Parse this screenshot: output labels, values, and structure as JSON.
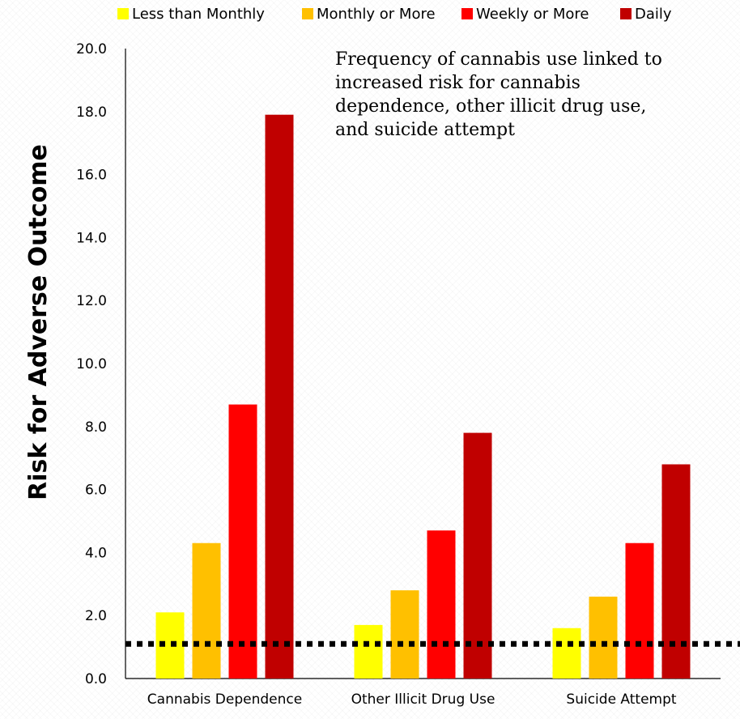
{
  "chart_data": {
    "type": "bar",
    "categories": [
      "Cannabis Dependence",
      "Other Illicit Drug Use",
      "Suicide Attempt"
    ],
    "series": [
      {
        "name": "Less than Monthly",
        "color": "#ffff00",
        "values": [
          2.1,
          1.7,
          1.6
        ]
      },
      {
        "name": "Monthly or More",
        "color": "#ffc000",
        "values": [
          4.3,
          2.8,
          2.6
        ]
      },
      {
        "name": "Weekly or More",
        "color": "#ff0000",
        "values": [
          8.7,
          4.7,
          4.3
        ]
      },
      {
        "name": "Daily",
        "color": "#c00000",
        "values": [
          17.9,
          7.8,
          6.8
        ]
      }
    ],
    "ylabel": "Risk for Adverse Outcome",
    "ylim": [
      0,
      20
    ],
    "yticks": [
      "0.0",
      "2.0",
      "4.0",
      "6.0",
      "8.0",
      "10.0",
      "12.0",
      "14.0",
      "16.0",
      "18.0",
      "20.0"
    ],
    "reference_line": 1.1,
    "annotation": [
      "Frequency of cannabis use linked to",
      "increased risk for cannabis",
      "dependence, other illicit drug use,",
      "and suicide attempt"
    ],
    "legend_position": "top",
    "grid": false
  }
}
